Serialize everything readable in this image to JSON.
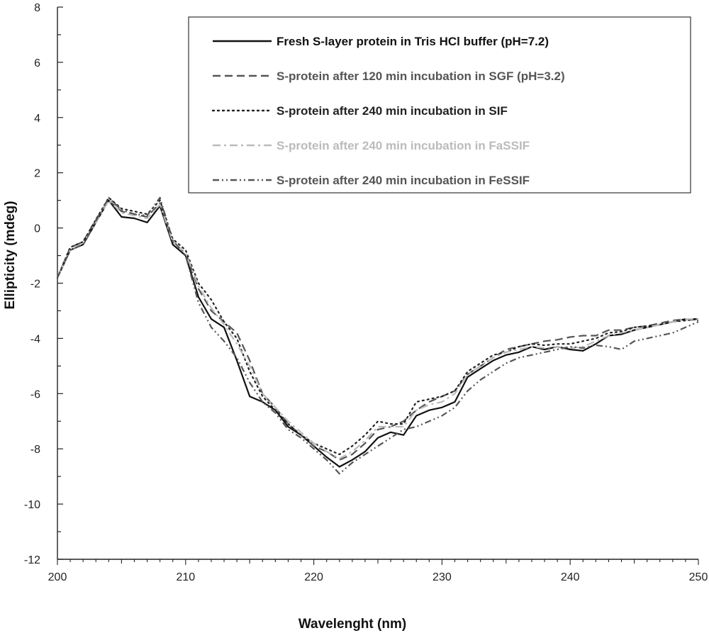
{
  "chart_data": {
    "type": "line",
    "title": "",
    "xlabel": "Wavelenght (nm)",
    "ylabel": "Ellipticity (mdeg)",
    "xlim": [
      200,
      250
    ],
    "ylim": [
      -12,
      8
    ],
    "x_ticks": [
      200,
      210,
      220,
      230,
      240,
      250
    ],
    "y_ticks": [
      8,
      6,
      4,
      2,
      0,
      -2,
      -4,
      -6,
      -8,
      -10,
      -12
    ],
    "grid": false,
    "legend_position": "top-right",
    "series": [
      {
        "name": "Fresh  S-layer protein in Tris HCl buffer (pH=7.2)",
        "color": "#111111",
        "dash": "solid",
        "x": [
          200,
          201,
          202,
          203,
          204,
          205,
          206,
          207,
          208,
          209,
          210,
          211,
          212,
          213,
          214,
          215,
          216,
          217,
          218,
          219,
          220,
          221,
          222,
          223,
          224,
          225,
          226,
          227,
          228,
          229,
          230,
          231,
          232,
          233,
          234,
          235,
          236,
          237,
          238,
          239,
          240,
          241,
          242,
          243,
          244,
          245,
          246,
          247,
          248,
          249,
          250
        ],
        "y": [
          -1.8,
          -0.8,
          -0.6,
          0.2,
          1.0,
          0.4,
          0.35,
          0.2,
          0.8,
          -0.6,
          -1.0,
          -2.5,
          -3.3,
          -3.6,
          -4.8,
          -6.1,
          -6.3,
          -6.6,
          -7.2,
          -7.5,
          -7.9,
          -8.3,
          -8.65,
          -8.4,
          -8.1,
          -7.6,
          -7.4,
          -7.5,
          -6.8,
          -6.6,
          -6.5,
          -6.3,
          -5.4,
          -5.1,
          -4.8,
          -4.6,
          -4.5,
          -4.3,
          -4.4,
          -4.3,
          -4.4,
          -4.45,
          -4.2,
          -3.9,
          -3.85,
          -3.7,
          -3.6,
          -3.5,
          -3.4,
          -3.3,
          -3.3
        ]
      },
      {
        "name": "S-protein after 120 min incubation in SGF (pH=3.2)",
        "color": "#555555",
        "dash": "dashed",
        "x": [
          200,
          201,
          202,
          203,
          204,
          205,
          206,
          207,
          208,
          209,
          210,
          211,
          212,
          213,
          214,
          215,
          216,
          217,
          218,
          219,
          220,
          221,
          222,
          223,
          224,
          225,
          226,
          227,
          228,
          229,
          230,
          231,
          232,
          233,
          234,
          235,
          236,
          237,
          238,
          239,
          240,
          241,
          242,
          243,
          244,
          245,
          246,
          247,
          248,
          249,
          250
        ],
        "y": [
          -1.8,
          -0.7,
          -0.5,
          0.3,
          1.0,
          0.6,
          0.5,
          0.4,
          0.9,
          -0.5,
          -0.9,
          -2.2,
          -3.0,
          -3.4,
          -3.8,
          -4.8,
          -6.0,
          -6.5,
          -7.1,
          -7.5,
          -7.9,
          -8.1,
          -8.4,
          -8.2,
          -7.8,
          -7.3,
          -7.2,
          -7.0,
          -6.6,
          -6.3,
          -6.1,
          -5.9,
          -5.3,
          -5.0,
          -4.7,
          -4.4,
          -4.3,
          -4.2,
          -4.1,
          -4.05,
          -3.95,
          -3.9,
          -3.9,
          -3.7,
          -3.7,
          -3.6,
          -3.55,
          -3.45,
          -3.35,
          -3.3,
          -3.35
        ]
      },
      {
        "name": "S-protein after 240 min incubation in SIF",
        "color": "#222222",
        "dash": "dotted",
        "x": [
          200,
          201,
          202,
          203,
          204,
          205,
          206,
          207,
          208,
          209,
          210,
          211,
          212,
          213,
          214,
          215,
          216,
          217,
          218,
          219,
          220,
          221,
          222,
          223,
          224,
          225,
          226,
          227,
          228,
          229,
          230,
          231,
          232,
          233,
          234,
          235,
          236,
          237,
          238,
          239,
          240,
          241,
          242,
          243,
          244,
          245,
          246,
          247,
          248,
          249,
          250
        ],
        "y": [
          -1.8,
          -0.7,
          -0.5,
          0.3,
          1.1,
          0.7,
          0.6,
          0.5,
          1.0,
          -0.4,
          -0.8,
          -2.0,
          -2.6,
          -3.4,
          -4.0,
          -5.2,
          -6.1,
          -6.6,
          -7.1,
          -7.5,
          -7.8,
          -8.0,
          -8.2,
          -7.9,
          -7.5,
          -7.0,
          -7.1,
          -7.1,
          -6.3,
          -6.2,
          -6.1,
          -5.9,
          -5.2,
          -4.9,
          -4.6,
          -4.5,
          -4.3,
          -4.2,
          -4.25,
          -4.2,
          -4.2,
          -4.1,
          -4.0,
          -3.8,
          -3.75,
          -3.6,
          -3.55,
          -3.5,
          -3.4,
          -3.35,
          -3.3
        ]
      },
      {
        "name": "S-protein after 240 min incubation in FaSSIF",
        "color": "#bbbbbb",
        "dash": "dash-dot",
        "x": [
          200,
          201,
          202,
          203,
          204,
          205,
          206,
          207,
          208,
          209,
          210,
          211,
          212,
          213,
          214,
          215,
          216,
          217,
          218,
          219,
          220,
          221,
          222,
          223,
          224,
          225,
          226,
          227,
          228,
          229,
          230,
          231,
          232,
          233,
          234,
          235,
          236,
          237,
          238,
          239,
          240,
          241,
          242,
          243,
          244,
          245,
          246,
          247,
          248,
          249,
          250
        ],
        "y": [
          -1.8,
          -0.8,
          -0.55,
          0.2,
          1.0,
          0.55,
          0.45,
          0.35,
          0.85,
          -0.5,
          -0.9,
          -2.1,
          -2.9,
          -3.5,
          -4.2,
          -5.0,
          -6.0,
          -6.5,
          -7.0,
          -7.4,
          -7.8,
          -8.1,
          -8.35,
          -8.1,
          -7.7,
          -7.2,
          -7.2,
          -7.2,
          -6.6,
          -6.4,
          -6.3,
          -6.0,
          -5.3,
          -5.0,
          -4.7,
          -4.5,
          -4.4,
          -4.3,
          -4.35,
          -4.3,
          -4.35,
          -4.3,
          -4.1,
          -3.9,
          -3.8,
          -3.7,
          -3.6,
          -3.5,
          -3.4,
          -3.3,
          -3.3
        ]
      },
      {
        "name": "S-protein after 240 min incubation in FeSSIF",
        "color": "#555555",
        "dash": "dash-dot-dot",
        "x": [
          200,
          201,
          202,
          203,
          204,
          205,
          206,
          207,
          208,
          209,
          210,
          211,
          212,
          213,
          214,
          215,
          216,
          217,
          218,
          219,
          220,
          221,
          222,
          223,
          224,
          225,
          226,
          227,
          228,
          229,
          230,
          231,
          232,
          233,
          234,
          235,
          236,
          237,
          238,
          239,
          240,
          241,
          242,
          243,
          244,
          245,
          246,
          247,
          248,
          249,
          250
        ],
        "y": [
          -1.8,
          -0.8,
          -0.6,
          0.25,
          1.1,
          0.65,
          0.5,
          0.45,
          1.1,
          -0.45,
          -1.0,
          -2.7,
          -3.6,
          -4.1,
          -4.7,
          -5.6,
          -6.3,
          -6.7,
          -7.3,
          -7.6,
          -8.0,
          -8.4,
          -8.9,
          -8.5,
          -8.2,
          -7.9,
          -7.6,
          -7.3,
          -7.2,
          -7.0,
          -6.8,
          -6.5,
          -5.9,
          -5.5,
          -5.2,
          -4.9,
          -4.7,
          -4.6,
          -4.5,
          -4.4,
          -4.3,
          -4.35,
          -4.25,
          -4.3,
          -4.4,
          -4.1,
          -4.0,
          -3.9,
          -3.8,
          -3.6,
          -3.4
        ]
      }
    ]
  }
}
